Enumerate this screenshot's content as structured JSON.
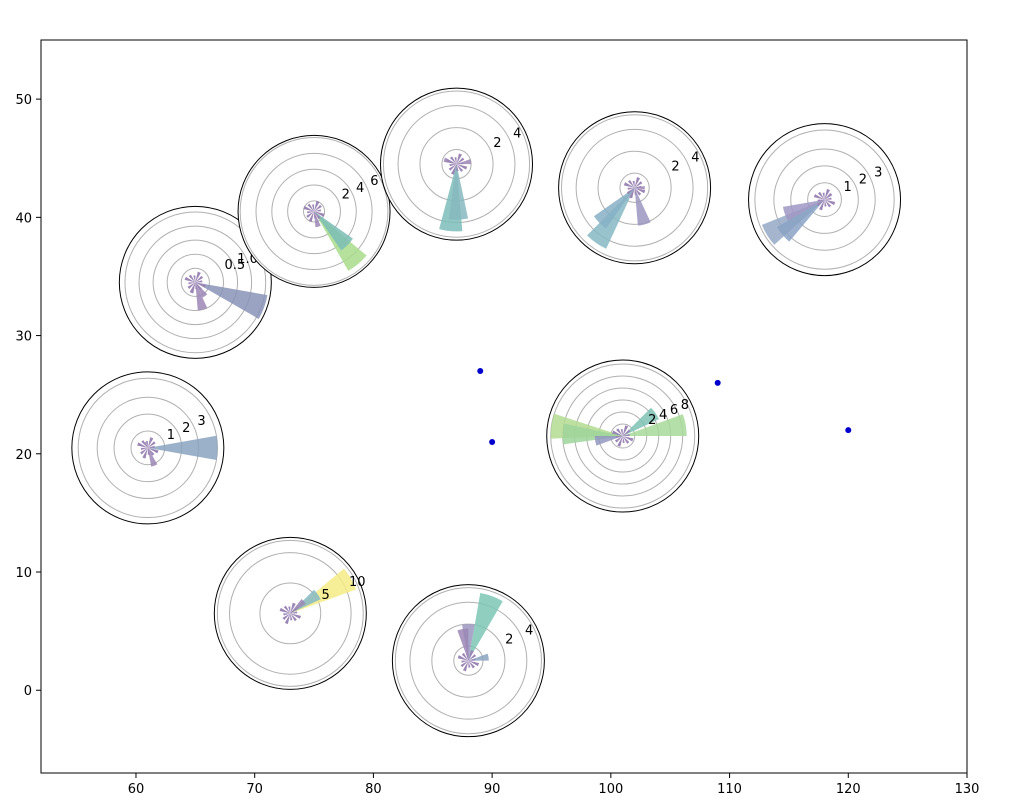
{
  "chart_data": {
    "type": "scatter",
    "subtype": "scatter-with-polar-rose-insets",
    "title": "",
    "xlabel": "",
    "ylabel": "",
    "xlim": [
      52,
      130
    ],
    "ylim": [
      -7,
      55
    ],
    "grid": false,
    "x_ticks": [
      60,
      70,
      80,
      90,
      100,
      110,
      120,
      130
    ],
    "y_ticks": [
      0,
      10,
      20,
      30,
      40,
      50
    ],
    "points": [
      {
        "x": 89,
        "y": 27
      },
      {
        "x": 90,
        "y": 21
      },
      {
        "x": 109,
        "y": 26
      },
      {
        "x": 120,
        "y": 22
      }
    ],
    "point_color": "#0000cc",
    "roses": [
      {
        "center": {
          "x": 65,
          "y": 34.5
        },
        "rmax": 1.35,
        "rings": [
          0.25,
          0.5,
          0.75,
          1.0,
          1.25
        ],
        "ring_labels": [
          "0.5",
          "1.0"
        ],
        "petals": [
          {
            "angle": -20,
            "length": 1.3,
            "color": "#8a93b8"
          },
          {
            "angle": -75,
            "length": 0.5,
            "color": "#9b86b5"
          },
          {
            "angle": -110,
            "length": 0.2,
            "color": "#9b86b5"
          },
          {
            "angle": -55,
            "length": 0.3,
            "color": "#9b86b5"
          }
        ]
      },
      {
        "center": {
          "x": 75,
          "y": 40.5
        },
        "rmax": 7.2,
        "rings": [
          1,
          2.5,
          4,
          5.5,
          7
        ],
        "ring_labels": [
          "2",
          "4",
          "6"
        ],
        "petals": [
          {
            "angle": -50,
            "length": 6.5,
            "color": "#a8dc8c"
          },
          {
            "angle": -45,
            "length": 4.5,
            "color": "#7bbcb5"
          },
          {
            "angle": -75,
            "length": 1.5,
            "color": "#9b86b5"
          }
        ]
      },
      {
        "center": {
          "x": 87,
          "y": 44.5
        },
        "rmax": 5.2,
        "rings": [
          1,
          2.5,
          4,
          5
        ],
        "ring_labels": [
          "2",
          "4"
        ],
        "petals": [
          {
            "angle": -95,
            "length": 4.6,
            "color": "#7cbcb8"
          },
          {
            "angle": -88,
            "length": 3.8,
            "color": "#86b8c0"
          },
          {
            "angle": 10,
            "length": 1.0,
            "color": "#9b86b5"
          },
          {
            "angle": 160,
            "length": 0.9,
            "color": "#9b86b5"
          }
        ]
      },
      {
        "center": {
          "x": 102,
          "y": 42.5
        },
        "rmax": 5.2,
        "rings": [
          1,
          2.5,
          4,
          5
        ],
        "ring_labels": [
          "2",
          "4"
        ],
        "petals": [
          {
            "angle": -125,
            "length": 4.6,
            "color": "#86b8c4"
          },
          {
            "angle": -135,
            "length": 3.4,
            "color": "#86b0c4"
          },
          {
            "angle": -75,
            "length": 2.6,
            "color": "#9b96c0"
          },
          {
            "angle": 0,
            "length": 0.7,
            "color": "#9b86b5"
          }
        ]
      },
      {
        "center": {
          "x": 118,
          "y": 41.5
        },
        "rmax": 3.6,
        "rings": [
          0.8,
          1.6,
          2.4,
          3.3
        ],
        "ring_labels": [
          "1",
          "2",
          "3"
        ],
        "petals": [
          {
            "angle": -148,
            "length": 3.2,
            "color": "#95a8c5"
          },
          {
            "angle": -140,
            "length": 2.6,
            "color": "#8aa3c4"
          },
          {
            "angle": -160,
            "length": 2.0,
            "color": "#9f98c4"
          },
          {
            "angle": 40,
            "length": 0.4,
            "color": "#9b86b5"
          }
        ]
      },
      {
        "center": {
          "x": 61,
          "y": 20.5
        },
        "rmax": 3.6,
        "rings": [
          0.8,
          1.6,
          2.4,
          3.3
        ],
        "ring_labels": [
          "1",
          "2",
          "3"
        ],
        "petals": [
          {
            "angle": 0,
            "length": 3.3,
            "color": "#8aa3bf"
          },
          {
            "angle": -70,
            "length": 0.9,
            "color": "#9b86b5"
          },
          {
            "angle": 120,
            "length": 0.3,
            "color": "#9b86b5"
          }
        ]
      },
      {
        "center": {
          "x": 101,
          "y": 21.5
        },
        "rmax": 9.5,
        "rings": [
          1.5,
          3,
          4.5,
          6,
          7.5,
          9
        ],
        "ring_labels": [
          "2",
          "4",
          "6",
          "8"
        ],
        "petals": [
          {
            "angle": 172,
            "length": 9.0,
            "color": "#b3dc92"
          },
          {
            "angle": 178,
            "length": 7.5,
            "color": "#9fd49a"
          },
          {
            "angle": 10,
            "length": 8.0,
            "color": "#a8d99a"
          },
          {
            "angle": 35,
            "length": 5.0,
            "color": "#7ec2b4"
          },
          {
            "angle": 190,
            "length": 3.5,
            "color": "#9296be"
          }
        ]
      },
      {
        "center": {
          "x": 73,
          "y": 6.5
        },
        "rmax": 12.5,
        "rings": [
          5,
          10,
          12
        ],
        "ring_labels": [
          "5",
          "10"
        ],
        "petals": [
          {
            "angle": 30,
            "length": 11.5,
            "color": "#f5ec85"
          },
          {
            "angle": 35,
            "length": 5.5,
            "color": "#86b8c4"
          },
          {
            "angle": 42,
            "length": 3.0,
            "color": "#9b86b5"
          }
        ]
      },
      {
        "center": {
          "x": 88,
          "y": 2.5
        },
        "rmax": 5.2,
        "rings": [
          1,
          2.5,
          4,
          5
        ],
        "ring_labels": [
          "2",
          "4"
        ],
        "petals": [
          {
            "angle": 70,
            "length": 4.7,
            "color": "#7dc6b5"
          },
          {
            "angle": 90,
            "length": 2.5,
            "color": "#9b96c0"
          },
          {
            "angle": 10,
            "length": 1.4,
            "color": "#8aa3bf"
          },
          {
            "angle": 100,
            "length": 2.2,
            "color": "#9b86b5"
          }
        ]
      }
    ]
  }
}
